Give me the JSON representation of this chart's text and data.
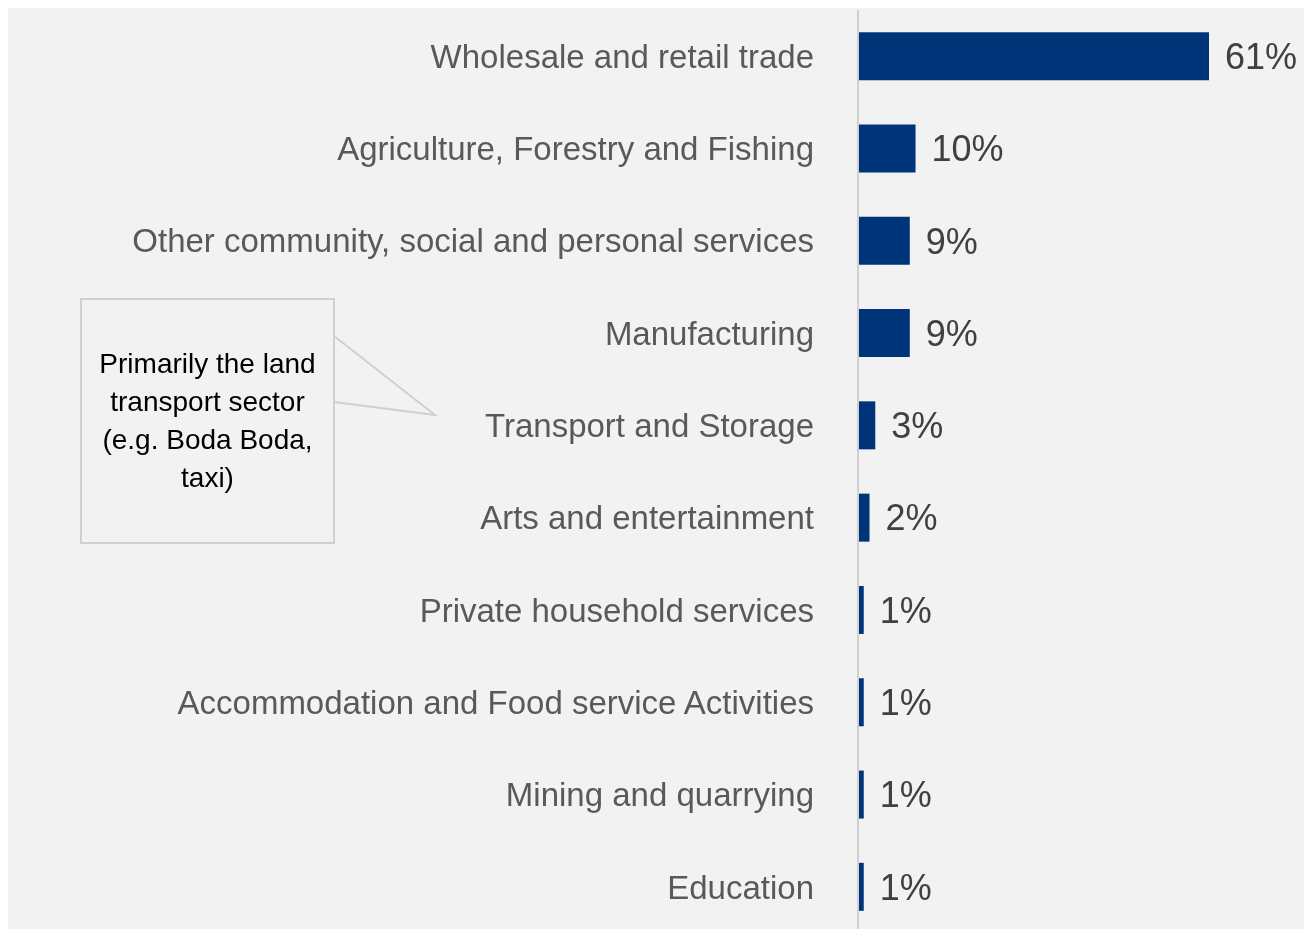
{
  "chart_data": {
    "type": "bar",
    "orientation": "horizontal",
    "categories": [
      "Wholesale and retail trade",
      "Agriculture, Forestry and Fishing",
      "Other community, social and personal services",
      "Manufacturing",
      "Transport and Storage",
      "Arts and entertainment",
      "Private household services",
      "Accommodation and Food service Activities",
      "Mining and quarrying",
      "Education"
    ],
    "values": [
      61,
      10,
      9,
      9,
      3,
      2,
      1,
      1,
      1,
      1
    ],
    "value_labels": [
      "61%",
      "10%",
      "9%",
      "9%",
      "3%",
      "2%",
      "1%",
      "1%",
      "1%",
      "1%"
    ],
    "color": "#003479",
    "tick_labels": "y",
    "annotations": [
      "Primarily the land transport sector (e.g. Boda Boda, taxi)"
    ]
  }
}
